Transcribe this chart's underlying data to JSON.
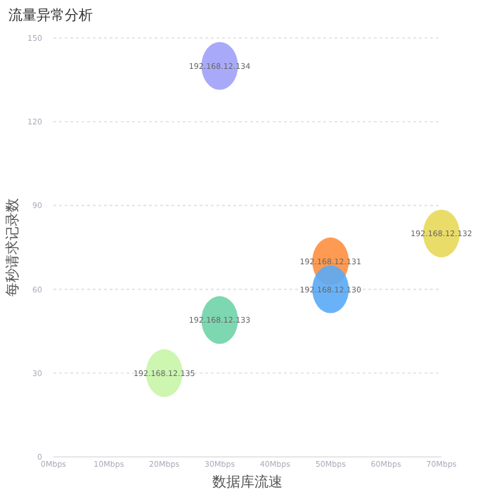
{
  "chart_data": {
    "type": "bubble",
    "title": "流量异常分析",
    "xlabel": "数据库流速",
    "ylabel": "每秒请求记录数",
    "x": [
      30,
      20,
      30,
      50,
      50,
      70
    ],
    "values": [
      140,
      30,
      49,
      70,
      60,
      80
    ],
    "sizes": [
      1,
      1,
      1,
      1,
      1,
      1
    ],
    "colors": [
      "#a0a0f8",
      "#c8f5a8",
      "#6fd3a8",
      "#ff8f3f",
      "#5aaaf6",
      "#e8d858"
    ],
    "annotations": [
      {
        "text": "192.168.12.134",
        "x": 30,
        "y": 140
      },
      {
        "text": "192.168.12.135",
        "x": 20,
        "y": 30
      },
      {
        "text": "192.168.12.133",
        "x": 30,
        "y": 49
      },
      {
        "text": "192.168.12.131",
        "x": 50,
        "y": 70
      },
      {
        "text": "192.168.12.130",
        "x": 50,
        "y": 60
      },
      {
        "text": "192.168.12.132",
        "x": 70,
        "y": 80
      }
    ],
    "xlim": [
      0,
      70
    ],
    "ylim": [
      0,
      150
    ],
    "xticks": [
      {
        "value": 0,
        "label": "0Mbps"
      },
      {
        "value": 10,
        "label": "10Mbps"
      },
      {
        "value": 20,
        "label": "20Mbps"
      },
      {
        "value": 30,
        "label": "30Mbps"
      },
      {
        "value": 40,
        "label": "40Mbps"
      },
      {
        "value": 50,
        "label": "50Mbps"
      },
      {
        "value": 60,
        "label": "60Mbps"
      },
      {
        "value": 70,
        "label": "70Mbps"
      }
    ],
    "yticks": [
      0,
      30,
      60,
      90,
      120,
      150
    ],
    "grid": "y"
  }
}
